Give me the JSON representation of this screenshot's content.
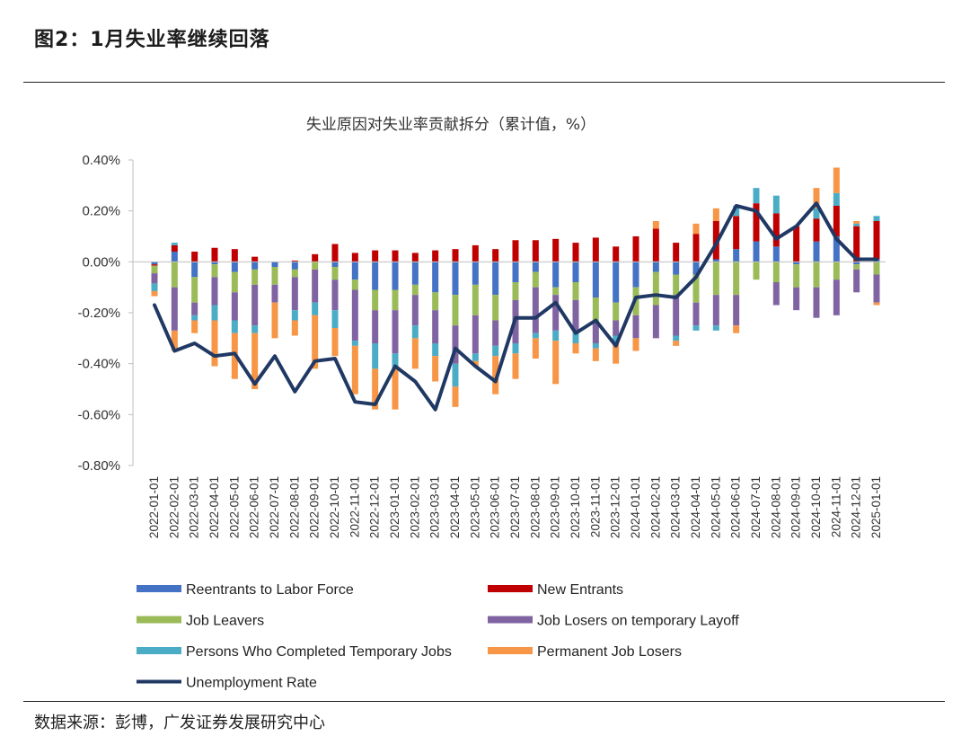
{
  "figure": {
    "title": "图2：1月失业率继续回落",
    "source": "数据来源：彭博，广发证券发展研究中心"
  },
  "chart_data": {
    "type": "bar",
    "stacked": true,
    "title": "失业原因对失业率贡献拆分（累计值，%）",
    "xlabel": "",
    "ylabel": "",
    "ylim": [
      -0.8,
      0.4
    ],
    "yticks": [
      0.4,
      0.2,
      0.0,
      -0.2,
      -0.4,
      -0.6,
      -0.8
    ],
    "ytick_labels": [
      "0.40%",
      "0.20%",
      "0.00%",
      "-0.20%",
      "-0.40%",
      "-0.60%",
      "-0.80%"
    ],
    "categories": [
      "2022-01-01",
      "2022-02-01",
      "2022-03-01",
      "2022-04-01",
      "2022-05-01",
      "2022-06-01",
      "2022-07-01",
      "2022-08-01",
      "2022-09-01",
      "2022-10-01",
      "2022-11-01",
      "2022-12-01",
      "2023-01-01",
      "2023-02-01",
      "2023-03-01",
      "2023-04-01",
      "2023-05-01",
      "2023-06-01",
      "2023-07-01",
      "2023-08-01",
      "2023-09-01",
      "2023-10-01",
      "2023-11-01",
      "2023-12-01",
      "2024-01-01",
      "2024-02-01",
      "2024-03-01",
      "2024-04-01",
      "2024-05-01",
      "2024-06-01",
      "2024-07-01",
      "2024-08-01",
      "2024-09-01",
      "2024-10-01",
      "2024-11-01",
      "2024-12-01",
      "2025-01-01"
    ],
    "series": [
      {
        "name": "Reentrants to Labor Force",
        "color": "#4472C4",
        "values": [
          -0.01,
          0.04,
          -0.06,
          -0.01,
          -0.04,
          -0.03,
          -0.02,
          -0.03,
          0,
          -0.02,
          -0.07,
          -0.11,
          -0.11,
          -0.09,
          -0.12,
          -0.13,
          -0.09,
          -0.13,
          -0.08,
          -0.04,
          -0.1,
          -0.08,
          -0.14,
          -0.16,
          -0.1,
          -0.04,
          -0.05,
          -0.05,
          0.01,
          0.05,
          0.08,
          0.06,
          -0.01,
          0.08,
          0.1,
          -0.01,
          0.01
        ]
      },
      {
        "name": "New Entrants",
        "color": "#C00000",
        "values": [
          -0.005,
          0.025,
          0.04,
          0.055,
          0.05,
          0.02,
          0.0,
          0.005,
          0.03,
          0.07,
          0.035,
          0.045,
          0.045,
          0.035,
          0.045,
          0.05,
          0.065,
          0.05,
          0.085,
          0.085,
          0.09,
          0.075,
          0.095,
          0.06,
          0.1,
          0.13,
          0.075,
          0.11,
          0.15,
          0.13,
          0.15,
          0.13,
          0.14,
          0.09,
          0.12,
          0.14,
          0.15
        ]
      },
      {
        "name": "Job Leavers",
        "color": "#9BBB59",
        "values": [
          -0.03,
          -0.1,
          -0.1,
          -0.05,
          -0.08,
          -0.06,
          -0.07,
          -0.03,
          -0.03,
          -0.05,
          -0.04,
          -0.08,
          -0.08,
          -0.04,
          -0.07,
          -0.12,
          -0.12,
          -0.1,
          -0.07,
          -0.06,
          -0.03,
          -0.07,
          -0.1,
          -0.07,
          -0.11,
          -0.13,
          -0.08,
          -0.11,
          -0.13,
          -0.13,
          -0.07,
          -0.08,
          -0.09,
          -0.1,
          -0.07,
          -0.02,
          -0.05
        ]
      },
      {
        "name": "Job Losers on temporary Layoff",
        "color": "#8064A2",
        "values": [
          -0.04,
          -0.17,
          -0.05,
          -0.11,
          -0.11,
          -0.16,
          -0.07,
          -0.13,
          -0.13,
          -0.12,
          -0.2,
          -0.13,
          -0.17,
          -0.12,
          -0.13,
          -0.15,
          -0.15,
          -0.1,
          -0.17,
          -0.18,
          -0.14,
          -0.13,
          -0.08,
          -0.06,
          -0.09,
          -0.13,
          -0.16,
          -0.09,
          -0.12,
          -0.12,
          0,
          -0.09,
          -0.09,
          -0.12,
          -0.14,
          -0.09,
          -0.11
        ]
      },
      {
        "name": "Persons Who Completed Temporary Jobs",
        "color": "#4BACC6",
        "values": [
          -0.03,
          0.01,
          -0.02,
          -0.06,
          -0.05,
          -0.03,
          0,
          -0.04,
          -0.05,
          -0.07,
          -0.02,
          -0.1,
          -0.06,
          -0.05,
          -0.05,
          -0.09,
          -0.03,
          -0.04,
          -0.04,
          -0.02,
          -0.04,
          -0.04,
          -0.02,
          -0.03,
          0,
          0,
          -0.02,
          -0.02,
          -0.02,
          0.04,
          0.06,
          0.07,
          0,
          0.04,
          0.05,
          0.01,
          0.02
        ]
      },
      {
        "name": "Permanent Job Losers",
        "color": "#F79646",
        "values": [
          -0.02,
          -0.08,
          -0.05,
          -0.18,
          -0.18,
          -0.22,
          -0.14,
          -0.06,
          -0.21,
          -0.11,
          -0.19,
          -0.16,
          -0.16,
          -0.12,
          -0.1,
          -0.08,
          -0.02,
          -0.15,
          -0.1,
          -0.08,
          -0.17,
          -0.04,
          -0.05,
          -0.08,
          -0.05,
          0.03,
          -0.02,
          0.04,
          0.05,
          -0.03,
          0,
          0,
          0,
          0.08,
          0.1,
          0.01,
          -0.01
        ]
      }
    ],
    "line": {
      "name": "Unemployment Rate",
      "color": "#203864",
      "values": [
        -0.17,
        -0.35,
        -0.32,
        -0.37,
        -0.36,
        -0.48,
        -0.37,
        -0.51,
        -0.39,
        -0.38,
        -0.55,
        -0.56,
        -0.41,
        -0.47,
        -0.58,
        -0.34,
        -0.41,
        -0.47,
        -0.22,
        -0.22,
        -0.16,
        -0.28,
        -0.23,
        -0.33,
        -0.14,
        -0.13,
        -0.14,
        -0.06,
        0.07,
        0.22,
        0.2,
        0.09,
        0.14,
        0.23,
        0.09,
        0.01,
        0.01
      ]
    },
    "legend_position": "bottom"
  }
}
